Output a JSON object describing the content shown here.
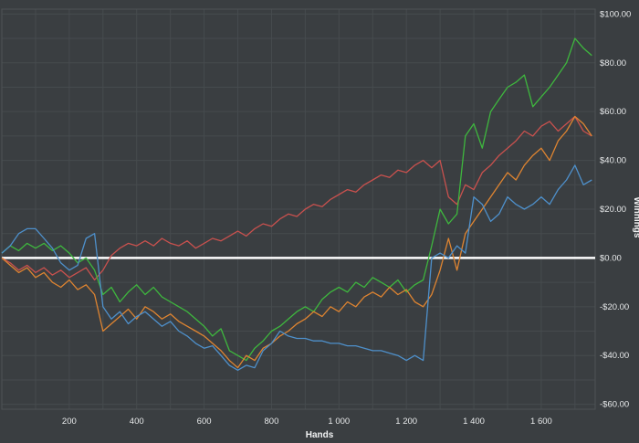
{
  "colors": {
    "background": "#3a3e41",
    "grid": "#464b4e",
    "border": "#4d5255",
    "text": "#e8eaeb"
  },
  "chart_data": {
    "type": "line",
    "title": "",
    "xlabel": "Hands",
    "ylabel": "Winnings",
    "x_domain": [
      0,
      1760
    ],
    "y_domain": [
      -62,
      102
    ],
    "x_start": 0,
    "x_step": 25,
    "grid": {
      "x_start": 100,
      "x_step": 100,
      "y_start": -60,
      "y_step": 10,
      "visible": true
    },
    "legend_position": "none",
    "x_ticks": [
      {
        "value": 200,
        "label": "200"
      },
      {
        "value": 400,
        "label": "400"
      },
      {
        "value": 600,
        "label": "600"
      },
      {
        "value": 800,
        "label": "800"
      },
      {
        "value": 1000,
        "label": "1 000"
      },
      {
        "value": 1200,
        "label": "1 200"
      },
      {
        "value": 1400,
        "label": "1 400"
      },
      {
        "value": 1600,
        "label": "1 600"
      }
    ],
    "y_ticks": [
      {
        "value": 100,
        "label": "$100.00"
      },
      {
        "value": 80,
        "label": "$80.00"
      },
      {
        "value": 60,
        "label": "$60.00"
      },
      {
        "value": 40,
        "label": "$40.00"
      },
      {
        "value": 20,
        "label": "$20.00"
      },
      {
        "value": 0,
        "label": "$0.00"
      },
      {
        "value": -20,
        "label": "-$20.00"
      },
      {
        "value": -40,
        "label": "-$40.00"
      },
      {
        "value": -60,
        "label": "-$60.00"
      }
    ],
    "zero_line": {
      "value": 0,
      "color": "#ffffff"
    },
    "series": [
      {
        "name": "red",
        "color": "#c9514e",
        "values": [
          0,
          -2,
          -5,
          -3,
          -6,
          -4,
          -7,
          -5,
          -8,
          -6,
          -4,
          -9,
          -5,
          1,
          4,
          6,
          5,
          7,
          5,
          8,
          6,
          5,
          7,
          4,
          6,
          8,
          7,
          9,
          11,
          9,
          12,
          14,
          13,
          16,
          18,
          17,
          20,
          22,
          21,
          24,
          26,
          28,
          27,
          30,
          32,
          34,
          33,
          36,
          35,
          38,
          40,
          37,
          40,
          25,
          22,
          30,
          28,
          35,
          38,
          42,
          45,
          48,
          52,
          50,
          54,
          56,
          52,
          55,
          58,
          52,
          50
        ]
      },
      {
        "name": "green",
        "color": "#3eb73e",
        "values": [
          2,
          5,
          3,
          6,
          4,
          6,
          3,
          5,
          2,
          -2,
          0,
          -5,
          -15,
          -12,
          -18,
          -14,
          -11,
          -15,
          -12,
          -16,
          -18,
          -20,
          -22,
          -25,
          -28,
          -32,
          -29,
          -38,
          -40,
          -42,
          -37,
          -34,
          -30,
          -28,
          -25,
          -22,
          -20,
          -22,
          -17,
          -14,
          -12,
          -14,
          -10,
          -12,
          -8,
          -10,
          -12,
          -9,
          -14,
          -11,
          -9,
          5,
          20,
          14,
          18,
          50,
          55,
          45,
          60,
          65,
          70,
          72,
          75,
          62,
          66,
          70,
          75,
          80,
          90,
          86,
          83
        ]
      },
      {
        "name": "orange",
        "color": "#de8431",
        "values": [
          0,
          -3,
          -6,
          -4,
          -8,
          -6,
          -10,
          -12,
          -9,
          -13,
          -11,
          -15,
          -30,
          -27,
          -24,
          -21,
          -25,
          -20,
          -22,
          -25,
          -23,
          -26,
          -28,
          -30,
          -32,
          -35,
          -38,
          -42,
          -45,
          -40,
          -42,
          -37,
          -35,
          -32,
          -30,
          -27,
          -25,
          -22,
          -24,
          -20,
          -22,
          -18,
          -20,
          -16,
          -14,
          -16,
          -12,
          -15,
          -13,
          -18,
          -20,
          -15,
          -5,
          8,
          -5,
          10,
          15,
          20,
          25,
          30,
          35,
          32,
          38,
          42,
          45,
          40,
          48,
          52,
          58,
          55,
          50
        ]
      },
      {
        "name": "blue",
        "color": "#4e90cb",
        "values": [
          2,
          5,
          10,
          12,
          12,
          8,
          4,
          -2,
          -5,
          -3,
          8,
          10,
          -20,
          -25,
          -22,
          -27,
          -24,
          -22,
          -25,
          -28,
          -26,
          -30,
          -32,
          -35,
          -37,
          -36,
          -40,
          -44,
          -46,
          -44,
          -45,
          -38,
          -35,
          -30,
          -32,
          -33,
          -33,
          -34,
          -34,
          -35,
          -35,
          -36,
          -36,
          -37,
          -38,
          -38,
          -39,
          -40,
          -42,
          -40,
          -42,
          0,
          2,
          0,
          5,
          2,
          25,
          22,
          15,
          18,
          25,
          22,
          20,
          22,
          25,
          22,
          28,
          32,
          38,
          30,
          32
        ]
      }
    ]
  }
}
